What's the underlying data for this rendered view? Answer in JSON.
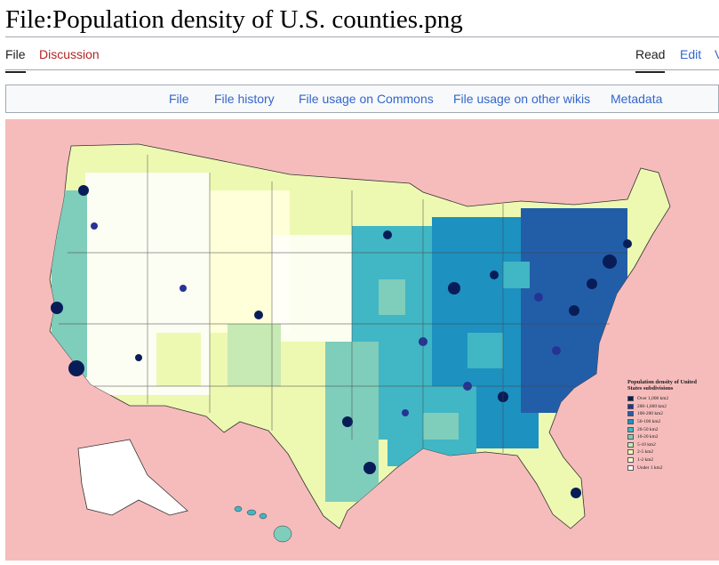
{
  "page": {
    "title": "File:Population density of U.S. counties.png"
  },
  "tabs": {
    "left": [
      "File",
      "Discussion"
    ],
    "right": [
      "Read",
      "Edit",
      "V"
    ]
  },
  "subnav": [
    "File",
    "File history",
    "File usage on Commons",
    "File usage on other wikis",
    "Metadata"
  ],
  "colors": {
    "background": "#f6bcbc",
    "link": "#3366cc",
    "redlink": "#b32424",
    "density_scale": [
      "#081d58",
      "#253494",
      "#225ea8",
      "#1d91c0",
      "#41b6c4",
      "#7fcdbb",
      "#c7e9b4",
      "#edf8b1",
      "#ffffd9",
      "#ffffff"
    ]
  },
  "map": {
    "icon": "us-counties-map",
    "legend": {
      "title": "Population density of United States subdivisions",
      "items": [
        {
          "label": "Over 1,000 km2",
          "color": "#081d58"
        },
        {
          "label": "200-1,000 km2",
          "color": "#253494"
        },
        {
          "label": "100-200 km2",
          "color": "#225ea8"
        },
        {
          "label": "50-100 km2",
          "color": "#1d91c0"
        },
        {
          "label": "20-50 km2",
          "color": "#41b6c4"
        },
        {
          "label": "10-20 km2",
          "color": "#7fcdbb"
        },
        {
          "label": "5-10 km2",
          "color": "#c7e9b4"
        },
        {
          "label": "2-5 km2",
          "color": "#edf8b1"
        },
        {
          "label": "1-2 km2",
          "color": "#ffffd9"
        },
        {
          "label": "Under 1 km2",
          "color": "#ffffff"
        }
      ]
    }
  }
}
